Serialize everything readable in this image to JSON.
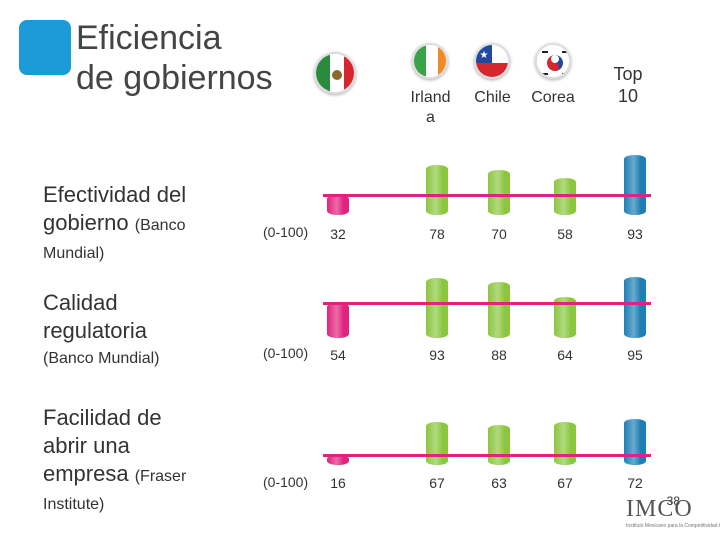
{
  "title": {
    "line1": "Eficiencia",
    "line2": "de gobiernos"
  },
  "columns": [
    {
      "key": "mexico",
      "label": "",
      "flag": "mexico-flag"
    },
    {
      "key": "irlanda",
      "label_line1": "Irland",
      "label_line2": "a",
      "flag": "ireland-flag"
    },
    {
      "key": "chile",
      "label": "Chile",
      "flag": "chile-flag"
    },
    {
      "key": "corea",
      "label": "Corea",
      "flag": "korea-flag"
    },
    {
      "key": "top10",
      "label_line1": "Top",
      "label_line2": "10"
    }
  ],
  "rows": [
    {
      "label_main": "Efectividad del",
      "label_main2": "gobierno",
      "label_small": "(Banco",
      "label_small2": "Mundial)",
      "unit": "(0-100)"
    },
    {
      "label_main": "Calidad",
      "label_main2": "regulatoria",
      "label_small": "(Banco Mundial)",
      "unit": "(0-100)"
    },
    {
      "label_main": "Facilidad de",
      "label_main2": "abrir una",
      "label_main3": "empresa",
      "label_small": "(Fraser",
      "label_small2": "Institute)",
      "unit": "(0-100)"
    }
  ],
  "chart_data": {
    "type": "bar",
    "title": "Eficiencia de gobiernos",
    "categories": [
      "Efectividad del gobierno (Banco Mundial)",
      "Calidad regulatoria (Banco Mundial)",
      "Facilidad de abrir una empresa (Fraser Institute)"
    ],
    "units": "(0-100)",
    "ylim": [
      0,
      100
    ],
    "series": [
      {
        "name": "México",
        "values": [
          32,
          54,
          16
        ],
        "color": "#e0237f"
      },
      {
        "name": "Irlanda",
        "values": [
          78,
          93,
          67
        ],
        "color": "#8cc63f"
      },
      {
        "name": "Chile",
        "values": [
          70,
          88,
          63
        ],
        "color": "#8cc63f"
      },
      {
        "name": "Corea",
        "values": [
          58,
          64,
          67
        ],
        "color": "#8cc63f"
      },
      {
        "name": "Top 10",
        "values": [
          93,
          95,
          72
        ],
        "color": "#1f7fb5"
      }
    ]
  },
  "footer": {
    "page_number": "38",
    "logo_text": "IMCO",
    "logo_sub": "Instituto Mexicano para la Competitividad A.C."
  }
}
